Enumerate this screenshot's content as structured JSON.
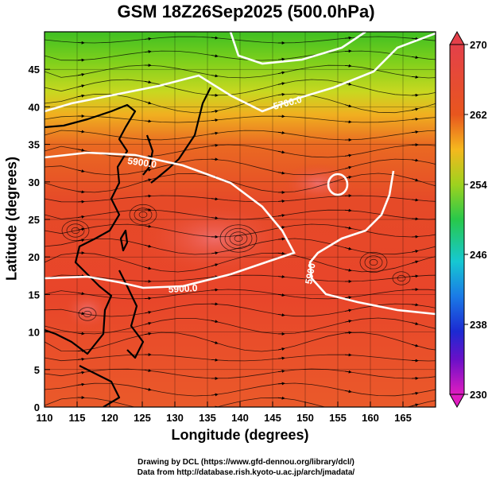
{
  "title": "GSM 18Z26Sep2025 (500.0hPa)",
  "xaxis": {
    "label": "Longitude (degrees)",
    "ticks": [
      "110",
      "115",
      "120",
      "125",
      "130",
      "135",
      "140",
      "145",
      "150",
      "155",
      "160",
      "165"
    ],
    "range": [
      110,
      170
    ]
  },
  "yaxis": {
    "label": "Latitude  (degrees)",
    "ticks": [
      "0",
      "5",
      "10",
      "15",
      "20",
      "25",
      "30",
      "35",
      "40",
      "45"
    ],
    "range": [
      0,
      50
    ]
  },
  "colorbar": {
    "ticks": [
      "270",
      "262",
      "254",
      "246",
      "238",
      "230"
    ],
    "range": [
      230,
      270
    ]
  },
  "contours": [
    {
      "label": "5900.0"
    },
    {
      "label": "5900.0"
    },
    {
      "label": "5900"
    },
    {
      "label": "5700.0"
    }
  ],
  "credits": {
    "line1": "Drawing by DCL (https://www.gfd-dennou.org/library/dcl/)",
    "line2": "Data from http://database.rish.kyoto-u.ac.jp/arch/jmadata/"
  },
  "colors": {
    "contour": "#ffffff",
    "land": "#000000",
    "warm": "#e8432a",
    "cool": "#3fbf2a"
  }
}
